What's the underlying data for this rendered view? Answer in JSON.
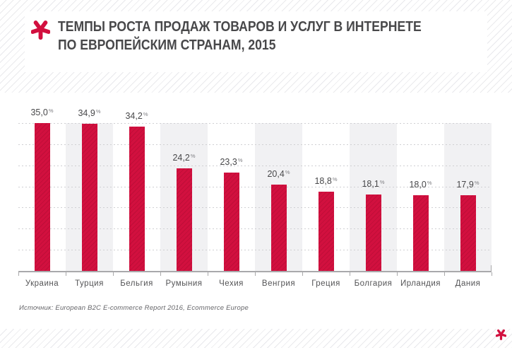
{
  "header": {
    "title_line1": "ТЕМПЫ РОСТА ПРОДАЖ ТОВАРОВ И УСЛУГ В ИНТЕРНЕТЕ",
    "title_line2": "ПО ЕВРОПЕЙСКИМ СТРАНАМ, 2015"
  },
  "chart_data": {
    "type": "bar",
    "title": "Темпы роста продаж товаров и услуг в интернете по европейским странам, 2015",
    "categories": [
      "Украина",
      "Турция",
      "Бельгия",
      "Румыния",
      "Чехия",
      "Венгрия",
      "Греция",
      "Болгария",
      "Ирландия",
      "Дания"
    ],
    "values": [
      35.0,
      34.9,
      34.2,
      24.2,
      23.3,
      20.4,
      18.8,
      18.1,
      18.0,
      17.9
    ],
    "value_labels": [
      "35,0",
      "34,9",
      "34,2",
      "24,2",
      "23,3",
      "20,4",
      "18,8",
      "18,1",
      "18,0",
      "17,9"
    ],
    "unit": "%",
    "xlabel": "",
    "ylabel": "",
    "ylim": [
      0,
      35
    ],
    "gridline_step": 5,
    "grid": "horizontal-dotted",
    "legend": "none",
    "bar_color": "#d2103f",
    "bar_stripe_color": "#c20e39",
    "band_color": "#f1f1f3",
    "accent_color": "#d2103f"
  },
  "source": {
    "text": "Источник: European B2C E-commerce Report 2016, Ecommerce Europe"
  }
}
